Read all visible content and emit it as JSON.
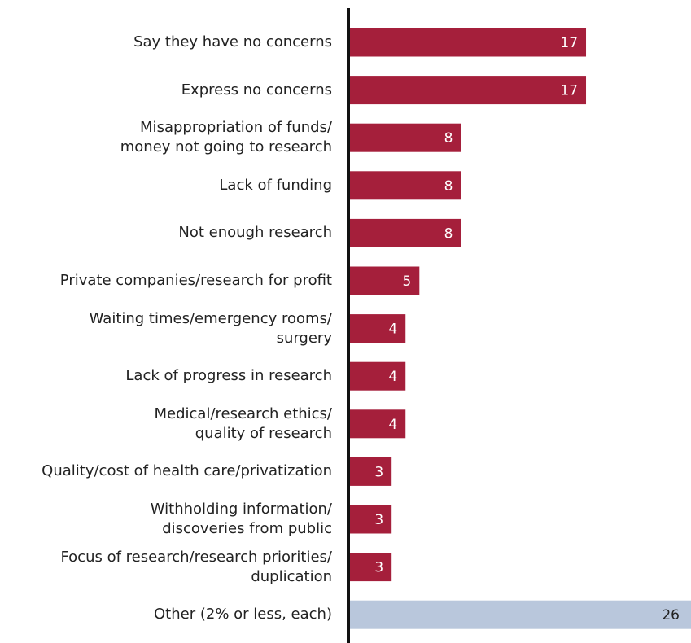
{
  "chart_data": {
    "type": "bar",
    "orientation": "horizontal",
    "categories": [
      "Say they have no concerns",
      "Express no concerns",
      "Misappropriation of funds/\nmoney not going to research",
      "Lack of funding",
      "Not enough research",
      "Private companies/research for profit",
      "Waiting times/emergency rooms/\nsurgery",
      "Lack of progress in research",
      "Medical/research ethics/\nquality of research",
      "Quality/cost of health care/privatization",
      "Withholding information/\ndiscoveries from public",
      "Focus of research/research priorities/\nduplication",
      "Other (2% or less, each)"
    ],
    "values": [
      17,
      17,
      8,
      8,
      8,
      5,
      4,
      4,
      4,
      3,
      3,
      3,
      26
    ],
    "colors": [
      "#a51f3b",
      "#a51f3b",
      "#a51f3b",
      "#a51f3b",
      "#a51f3b",
      "#a51f3b",
      "#a51f3b",
      "#a51f3b",
      "#a51f3b",
      "#a51f3b",
      "#a51f3b",
      "#a51f3b",
      "#b9c7dc"
    ]
  }
}
